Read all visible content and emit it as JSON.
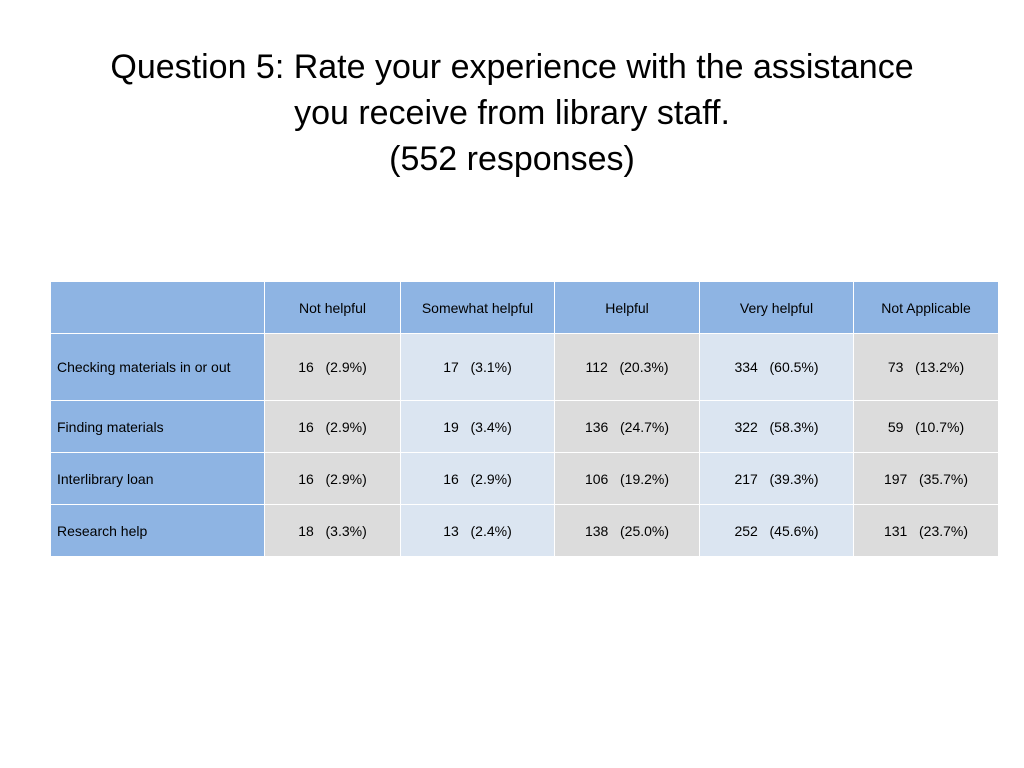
{
  "title": {
    "line1": "Question 5: Rate your experience with the assistance",
    "line2": "you receive from library staff.",
    "line3": "(552 responses)"
  },
  "table": {
    "corner": "",
    "columns": [
      "Not helpful",
      "Somewhat helpful",
      "Helpful",
      "Very helpful",
      "Not Applicable"
    ],
    "rows": [
      {
        "label": "Checking materials in or out",
        "cells": [
          "16   (2.9%)",
          "17   (3.1%)",
          "112   (20.3%)",
          "334   (60.5%)",
          "73   (13.2%)"
        ]
      },
      {
        "label": "Finding materials",
        "cells": [
          "16   (2.9%)",
          "19   (3.4%)",
          "136   (24.7%)",
          "322   (58.3%)",
          "59   (10.7%)"
        ]
      },
      {
        "label": "Interlibrary loan",
        "cells": [
          "16   (2.9%)",
          "16   (2.9%)",
          "106   (19.2%)",
          "217   (39.3%)",
          "197   (35.7%)"
        ]
      },
      {
        "label": "Research help",
        "cells": [
          "18   (3.3%)",
          "13   (2.4%)",
          "138   (25.0%)",
          "252   (45.6%)",
          "131   (23.7%)"
        ]
      }
    ]
  },
  "colors": {
    "header_blue": "#8eb4e3",
    "cell_gray": "#dcdcdc",
    "cell_light_blue": "#dbe5f1"
  }
}
